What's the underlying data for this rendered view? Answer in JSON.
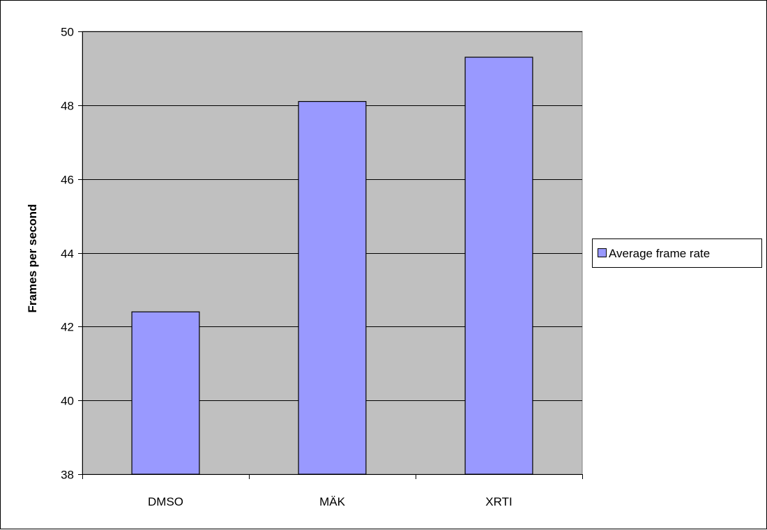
{
  "chart_data": {
    "type": "bar",
    "categories": [
      "DMSO",
      "MÄK",
      "XRTI"
    ],
    "series": [
      {
        "name": "Average frame rate",
        "values": [
          42.4,
          48.1,
          49.3
        ],
        "color": "#9999ff"
      }
    ],
    "xlabel": "",
    "ylabel": "Frames per second",
    "ylim": [
      38,
      50
    ],
    "yticks": [
      38,
      40,
      42,
      44,
      46,
      48,
      50
    ],
    "grid": true,
    "plot_background": "#c0c0c0",
    "legend": "right"
  }
}
